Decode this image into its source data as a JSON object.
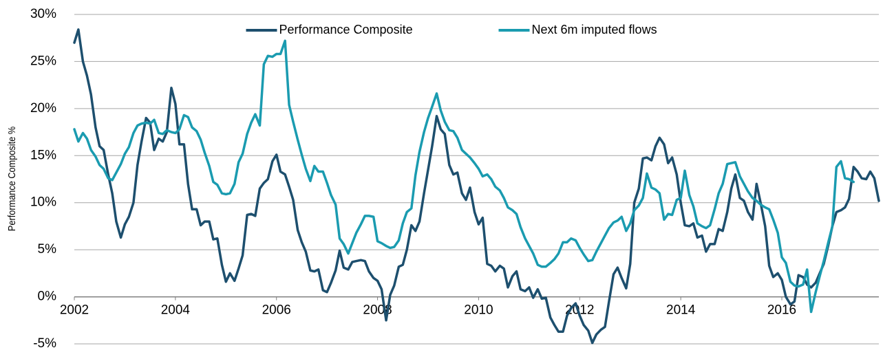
{
  "chart_data": {
    "type": "line",
    "y_label": "Performance Composite %",
    "legend": "upper center",
    "grid": true,
    "xlim": [
      2002,
      2017.92
    ],
    "xticks": [
      2002,
      2004,
      2006,
      2008,
      2010,
      2012,
      2014,
      2016
    ],
    "ylim": [
      -5,
      30
    ],
    "yticks": [
      {
        "value": -5,
        "label": "-5%"
      },
      {
        "value": 0,
        "label": "0%"
      },
      {
        "value": 5,
        "label": "5%"
      },
      {
        "value": 10,
        "label": "10%"
      },
      {
        "value": 15,
        "label": "15%"
      },
      {
        "value": 20,
        "label": "20%"
      },
      {
        "value": 25,
        "label": "25%"
      },
      {
        "value": 30,
        "label": "30%"
      }
    ],
    "x": [
      2002,
      2002.08,
      2002.17,
      2002.25,
      2002.33,
      2002.42,
      2002.5,
      2002.58,
      2002.67,
      2002.75,
      2002.83,
      2002.92,
      2003,
      2003.08,
      2003.17,
      2003.25,
      2003.33,
      2003.42,
      2003.5,
      2003.58,
      2003.67,
      2003.75,
      2003.83,
      2003.92,
      2004,
      2004.08,
      2004.17,
      2004.25,
      2004.33,
      2004.42,
      2004.5,
      2004.58,
      2004.67,
      2004.75,
      2004.83,
      2004.92,
      2005,
      2005.08,
      2005.17,
      2005.25,
      2005.33,
      2005.42,
      2005.5,
      2005.58,
      2005.67,
      2005.75,
      2005.83,
      2005.92,
      2006,
      2006.08,
      2006.17,
      2006.25,
      2006.33,
      2006.42,
      2006.5,
      2006.58,
      2006.67,
      2006.75,
      2006.83,
      2006.92,
      2007,
      2007.08,
      2007.17,
      2007.25,
      2007.33,
      2007.42,
      2007.5,
      2007.58,
      2007.67,
      2007.75,
      2007.83,
      2007.92,
      2008,
      2008.08,
      2008.17,
      2008.25,
      2008.33,
      2008.42,
      2008.5,
      2008.58,
      2008.67,
      2008.75,
      2008.83,
      2008.92,
      2009,
      2009.08,
      2009.17,
      2009.25,
      2009.33,
      2009.42,
      2009.5,
      2009.58,
      2009.67,
      2009.75,
      2009.83,
      2009.92,
      2010,
      2010.08,
      2010.17,
      2010.25,
      2010.33,
      2010.42,
      2010.5,
      2010.58,
      2010.67,
      2010.75,
      2010.83,
      2010.92,
      2011,
      2011.08,
      2011.17,
      2011.25,
      2011.33,
      2011.42,
      2011.5,
      2011.58,
      2011.67,
      2011.75,
      2011.83,
      2011.92,
      2012,
      2012.08,
      2012.17,
      2012.25,
      2012.33,
      2012.42,
      2012.5,
      2012.58,
      2012.67,
      2012.75,
      2012.83,
      2012.92,
      2013,
      2013.08,
      2013.17,
      2013.25,
      2013.33,
      2013.42,
      2013.5,
      2013.58,
      2013.67,
      2013.75,
      2013.83,
      2013.92,
      2014,
      2014.08,
      2014.17,
      2014.25,
      2014.33,
      2014.42,
      2014.5,
      2014.58,
      2014.67,
      2014.75,
      2014.83,
      2014.92,
      2015,
      2015.08,
      2015.17,
      2015.25,
      2015.33,
      2015.42,
      2015.5,
      2015.58,
      2015.67,
      2015.75,
      2015.83,
      2015.92,
      2016,
      2016.08,
      2016.17,
      2016.25,
      2016.33,
      2016.42,
      2016.5,
      2016.58,
      2016.67,
      2016.75,
      2016.83,
      2016.92,
      2017,
      2017.08,
      2017.17,
      2017.25,
      2017.33,
      2017.42,
      2017.5,
      2017.58,
      2017.67,
      2017.75,
      2017.83,
      2017.92
    ],
    "series": [
      {
        "name": "Performance Composite",
        "color": "#1d4f6e",
        "values": [
          27,
          28.4,
          25,
          23.5,
          21.5,
          18,
          16,
          15.6,
          13,
          11,
          8,
          6.3,
          7.7,
          8.5,
          10,
          14,
          16.5,
          19,
          18.5,
          15.6,
          16.8,
          16.5,
          17.5,
          22.2,
          20.5,
          16.2,
          16.2,
          12,
          9.3,
          9.3,
          7.6,
          8,
          8,
          6.1,
          6.2,
          3.4,
          1.6,
          2.5,
          1.7,
          3,
          4.4,
          8.7,
          8.8,
          8.6,
          11.5,
          12.1,
          12.5,
          14.4,
          15.1,
          13.3,
          13,
          11.7,
          10.3,
          7.1,
          5.8,
          4.8,
          2.8,
          2.7,
          2.9,
          0.7,
          0.5,
          1.5,
          2.8,
          4.9,
          3.1,
          2.9,
          3.7,
          3.8,
          3.9,
          3.8,
          2.7,
          2,
          1.7,
          0.8,
          -2.5,
          0.2,
          1.2,
          3.2,
          3.4,
          5,
          7.6,
          7,
          8,
          11,
          13.5,
          16,
          19.2,
          17.8,
          17.3,
          14,
          13,
          13.2,
          11,
          10.3,
          11.6,
          9,
          7.7,
          8.4,
          3.5,
          3.3,
          2.7,
          3.3,
          3,
          1,
          2.2,
          2.7,
          0.8,
          0.6,
          1,
          -0.1,
          0.8,
          -0.2,
          -0.1,
          -2.2,
          -3,
          -3.7,
          -3.7,
          -2,
          -1.2,
          -0.7,
          -2,
          -3,
          -3.6,
          -4.9,
          -4,
          -3.5,
          -3.2,
          -0.5,
          2.4,
          3.1,
          2,
          0.9,
          3.5,
          10,
          11.5,
          14.7,
          14.8,
          14.5,
          16,
          16.9,
          16.2,
          14.2,
          14.8,
          13,
          10,
          7.6,
          7.5,
          7.8,
          6.3,
          6.5,
          4.8,
          5.6,
          5.6,
          7.2,
          7,
          9,
          11.5,
          13,
          10.5,
          10.2,
          9,
          8.2,
          12,
          10,
          7.5,
          3.3,
          2.1,
          2.5,
          1.8,
          0,
          -0.8,
          -0.5,
          2.3,
          2.1,
          1.3,
          1,
          1.5,
          2.5,
          3.5,
          5.5,
          7.5,
          9,
          9.2,
          9.5,
          10.4,
          13.8,
          13.3,
          12.6,
          12.5,
          13.3,
          12.6,
          10.2
        ]
      },
      {
        "name": "Next 6m imputed flows",
        "color": "#1a9bb0",
        "values": [
          17.8,
          16.5,
          17.4,
          16.8,
          15.6,
          14.9,
          14,
          13.6,
          12.6,
          12.4,
          13.2,
          14.1,
          15.2,
          15.9,
          17.4,
          18.2,
          18.4,
          18.5,
          18.4,
          18.8,
          17.4,
          17.3,
          17.7,
          17.5,
          17.4,
          17.8,
          19.3,
          19.1,
          18,
          17.6,
          16.7,
          15.3,
          13.9,
          12.2,
          11.9,
          11,
          10.9,
          11,
          12,
          14.3,
          15.2,
          17.3,
          18.5,
          19.4,
          18.2,
          24.7,
          25.6,
          25.5,
          25.8,
          25.8,
          27.2,
          20.4,
          18.6,
          16.7,
          15.1,
          13.6,
          12.3,
          13.9,
          13.3,
          13.3,
          12.1,
          10.8,
          9.8,
          6.2,
          5.6,
          4.6,
          5.7,
          6.8,
          7.7,
          8.6,
          8.6,
          8.5,
          5.9,
          5.7,
          5.4,
          5.2,
          5.3,
          6,
          7.8,
          9,
          9.4,
          12.9,
          15.4,
          17.5,
          19,
          20.2,
          21.6,
          19.8,
          18.6,
          17.7,
          17.6,
          16.9,
          15.6,
          15.2,
          14.8,
          14.2,
          13.6,
          12.8,
          13,
          12.5,
          11.7,
          11.3,
          10.5,
          9.5,
          9.2,
          8.8,
          7.4,
          6.2,
          5.4,
          4.6,
          3.4,
          3.2,
          3.2,
          3.6,
          4,
          4.6,
          5.8,
          5.8,
          6.2,
          6,
          5.2,
          4.5,
          3.8,
          3.9,
          4.8,
          5.7,
          6.5,
          7.3,
          7.9,
          8.1,
          8.5,
          7,
          7.8,
          9.2,
          9.7,
          10.5,
          13.1,
          11.6,
          11.4,
          11,
          8.2,
          8.8,
          8.7,
          10.3,
          10.5,
          13.4,
          10.8,
          9.6,
          7.8,
          7.5,
          7.3,
          7.6,
          9.3,
          11,
          12,
          14.1,
          14.2,
          14.3,
          12.8,
          12,
          11.2,
          10.5,
          10.2,
          9.8,
          9.5,
          9.3,
          8.2,
          6.8,
          4.2,
          3.6,
          1.6,
          1.2,
          1.1,
          1.3,
          2.9,
          -1.6,
          0.5,
          2.2,
          3.8,
          5.8,
          7.5,
          13.8,
          14.4,
          12.6,
          12.5,
          12.2,
          null,
          null,
          null,
          null,
          null,
          null
        ]
      }
    ]
  }
}
